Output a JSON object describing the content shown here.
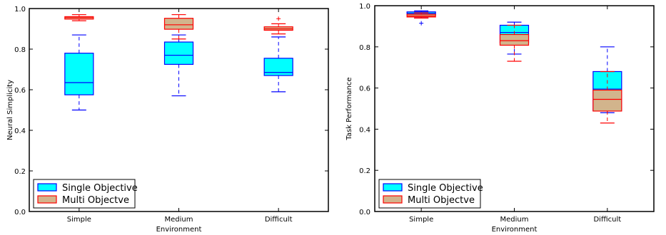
{
  "chart_data": [
    {
      "type": "box",
      "xlabel": "Environment",
      "ylabel": "Neural Simplicity",
      "ylim": [
        0.0,
        1.0
      ],
      "yticks": [
        "0.0",
        "0.2",
        "0.4",
        "0.6",
        "0.8",
        "1.0"
      ],
      "categories": [
        "Simple",
        "Medium",
        "Difficult"
      ],
      "legend_position": "lower-left",
      "series": [
        {
          "name": "Single Objective",
          "color": "#00ffff",
          "edge": "#0000ff",
          "boxes": [
            {
              "category": "Simple",
              "whislo": 0.5,
              "q1": 0.575,
              "med": 0.635,
              "q3": 0.78,
              "whishi": 0.87,
              "fliers": []
            },
            {
              "category": "Medium",
              "whislo": 0.57,
              "q1": 0.725,
              "med": 0.77,
              "q3": 0.835,
              "whishi": 0.87,
              "fliers": []
            },
            {
              "category": "Difficult",
              "whislo": 0.59,
              "q1": 0.67,
              "med": 0.685,
              "q3": 0.755,
              "whishi": 0.86,
              "fliers": []
            }
          ]
        },
        {
          "name": "Multi Objectve",
          "color": "#d2b48c",
          "edge": "#ff0000",
          "boxes": [
            {
              "category": "Simple",
              "whislo": 0.94,
              "q1": 0.948,
              "med": 0.955,
              "q3": 0.96,
              "whishi": 0.97,
              "fliers": []
            },
            {
              "category": "Medium",
              "whislo": 0.85,
              "q1": 0.898,
              "med": 0.92,
              "q3": 0.952,
              "whishi": 0.97,
              "fliers": []
            },
            {
              "category": "Difficult",
              "whislo": 0.875,
              "q1": 0.893,
              "med": 0.9,
              "q3": 0.91,
              "whishi": 0.925,
              "fliers": [
                0.95
              ]
            }
          ]
        }
      ]
    },
    {
      "type": "box",
      "xlabel": "Environment",
      "ylabel": "Task Performance",
      "ylim": [
        0.0,
        1.0
      ],
      "yticks": [
        "0.0",
        "0.2",
        "0.4",
        "0.6",
        "0.8",
        "1.0"
      ],
      "categories": [
        "Simple",
        "Medium",
        "Difficult"
      ],
      "legend_position": "lower-left",
      "series": [
        {
          "name": "Single Objective",
          "color": "#00ffff",
          "edge": "#0000ff",
          "boxes": [
            {
              "category": "Simple",
              "whislo": 0.94,
              "q1": 0.955,
              "med": 0.963,
              "q3": 0.97,
              "whishi": 0.975,
              "fliers": [
                0.915
              ]
            },
            {
              "category": "Medium",
              "whislo": 0.765,
              "q1": 0.82,
              "med": 0.87,
              "q3": 0.905,
              "whishi": 0.92,
              "fliers": []
            },
            {
              "category": "Difficult",
              "whislo": 0.48,
              "q1": 0.49,
              "med": 0.595,
              "q3": 0.68,
              "whishi": 0.8,
              "fliers": []
            }
          ]
        },
        {
          "name": "Multi Objectve",
          "color": "#d2b48c",
          "edge": "#ff0000",
          "boxes": [
            {
              "category": "Simple",
              "whislo": 0.94,
              "q1": 0.945,
              "med": 0.95,
              "q3": 0.958,
              "whishi": 0.965,
              "fliers": []
            },
            {
              "category": "Medium",
              "whislo": 0.73,
              "q1": 0.808,
              "med": 0.83,
              "q3": 0.86,
              "whishi": 0.905,
              "fliers": []
            },
            {
              "category": "Difficult",
              "whislo": 0.43,
              "q1": 0.488,
              "med": 0.545,
              "q3": 0.59,
              "whishi": 0.68,
              "fliers": []
            }
          ]
        }
      ]
    }
  ]
}
